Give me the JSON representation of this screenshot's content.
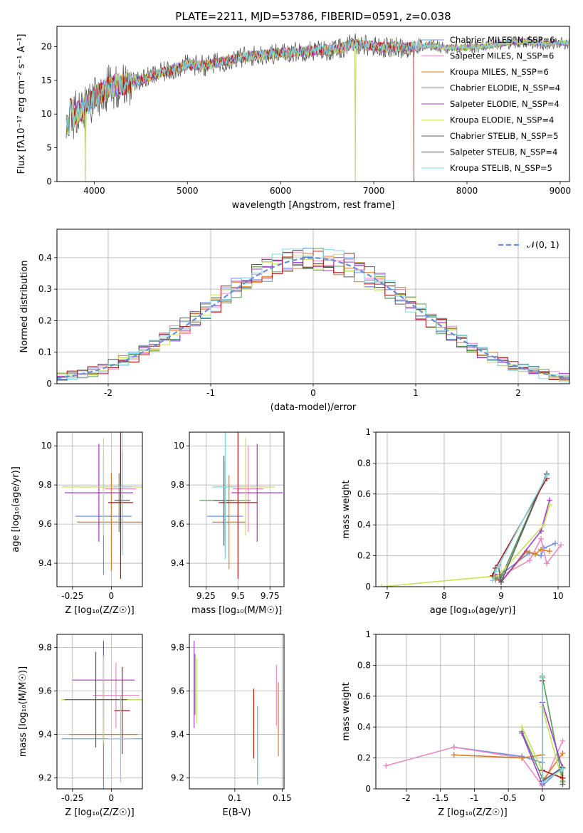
{
  "figure_title": "PLATE=2211, MJD=53786, FIBERID=0591, z=0.038",
  "colors": {
    "Chabrier MILES": "#6f8fe0",
    "Salpeter MILES": "#e98bc0",
    "Kroupa MILES": "#e07a20",
    "Chabrier ELODIE": "#5a9a5a",
    "Salpeter ELODIE": "#a23cc8",
    "Kroupa ELODIE": "#c8e05a",
    "Chabrier STELIB": "#5a5a5a",
    "Salpeter STELIB": "#b01818",
    "Kroupa STELIB": "#7fd8e0",
    "gaussian": "#6a8fd8"
  },
  "chart_data": [
    {
      "type": "line",
      "xlabel": "wavelength [Angstrom, rest frame]",
      "ylabel": "Flux [fλ10⁻¹⁷ erg cm⁻² s⁻¹ A⁻¹]",
      "xlim": [
        3600,
        9100
      ],
      "ylim": [
        0,
        23
      ],
      "xticks": [
        4000,
        5000,
        6000,
        7000,
        8000,
        9000
      ],
      "yticks": [
        0,
        5,
        10,
        15,
        20
      ],
      "grid": false,
      "legend_position": "right",
      "series": [
        {
          "name": "Chabrier MILES, N_SSP=6",
          "nssp": "6"
        },
        {
          "name": "Salpeter MILES, N_SSP=6",
          "nssp": "6"
        },
        {
          "name": "Kroupa MILES, N_SSP=6",
          "nssp": "6"
        },
        {
          "name": "Chabrier ELODIE, N_SSP=4",
          "nssp": "4"
        },
        {
          "name": "Salpeter ELODIE, N_SSP=4",
          "nssp": "4"
        },
        {
          "name": "Kroupa ELODIE, N_SSP=4",
          "nssp": "4"
        },
        {
          "name": "Chabrier STELIB, N_SSP=5",
          "nssp": "5"
        },
        {
          "name": "Salpeter STELIB, N_SSP=4",
          "nssp": "4"
        },
        {
          "name": "Kroupa STELIB, N_SSP=5",
          "nssp": "5"
        }
      ],
      "labels": [
        "Chabrier MILES",
        "Salpeter MILES",
        "Kroupa MILES",
        "Chabrier ELODIE",
        "Salpeter ELODIE",
        "Kroupa ELODIE",
        "Chabrier STELIB",
        "Salpeter STELIB",
        "Kroupa STELIB"
      ],
      "envelope": [
        [
          3700,
          8
        ],
        [
          3800,
          10
        ],
        [
          3900,
          11
        ],
        [
          4000,
          12.5
        ],
        [
          4100,
          13.5
        ],
        [
          4200,
          14.2
        ],
        [
          4300,
          14.5
        ],
        [
          4500,
          15
        ],
        [
          4700,
          16
        ],
        [
          5000,
          17.3
        ],
        [
          5200,
          17.2
        ],
        [
          5500,
          18.2
        ],
        [
          5800,
          18.8
        ],
        [
          6000,
          19
        ],
        [
          6300,
          19.4
        ],
        [
          6600,
          19.5
        ],
        [
          6800,
          20.5
        ],
        [
          7000,
          20
        ],
        [
          7200,
          19.8
        ],
        [
          7400,
          19.9
        ],
        [
          7600,
          20.2
        ],
        [
          7800,
          19.8
        ],
        [
          8000,
          19.9
        ],
        [
          8200,
          20
        ],
        [
          8400,
          20.5
        ],
        [
          8600,
          20.8
        ],
        [
          8800,
          20.4
        ],
        [
          9000,
          20.5
        ]
      ]
    },
    {
      "type": "line",
      "xlabel": "(data-model)/error",
      "ylabel": "Normed distribution",
      "xlim": [
        -2.5,
        2.5
      ],
      "ylim": [
        0,
        0.49
      ],
      "xticks": [
        -2,
        -1,
        0,
        1,
        2
      ],
      "yticks": [
        0.0,
        0.1,
        0.2,
        0.3,
        0.4
      ],
      "grid": true,
      "legend_position": "top-right",
      "legend_label": "𝒩(0, 1)",
      "bins": [
        -2.5,
        -2.4,
        -2.3,
        -2.2,
        -2.1,
        -2.0,
        -1.9,
        -1.8,
        -1.7,
        -1.6,
        -1.5,
        -1.4,
        -1.3,
        -1.2,
        -1.1,
        -1.0,
        -0.9,
        -0.8,
        -0.7,
        -0.6,
        -0.5,
        -0.4,
        -0.3,
        -0.2,
        -0.1,
        0.0,
        0.1,
        0.2,
        0.3,
        0.4,
        0.5,
        0.6,
        0.7,
        0.8,
        0.9,
        1.0,
        1.1,
        1.2,
        1.3,
        1.4,
        1.5,
        1.6,
        1.7,
        1.8,
        1.9,
        2.0,
        2.1,
        2.2,
        2.3,
        2.4,
        2.5
      ]
    },
    {
      "type": "scatter",
      "xlabel": "Z [log₁₀(Z/Z☉)]",
      "ylabel": "age  [log₁₀(age/yr)]",
      "xlim": [
        -0.35,
        0.2
      ],
      "ylim": [
        9.28,
        10.07
      ],
      "xticks": [
        -0.25,
        0.0
      ],
      "yticks": [
        9.4,
        9.6,
        9.8,
        10.0
      ],
      "grid": true,
      "points": [
        {
          "x": -0.05,
          "y": 9.64,
          "xerr": 0.18,
          "yerr": 0.3
        },
        {
          "x": 0.06,
          "y": 9.78,
          "xerr": 0.1,
          "yerr": 0.2
        },
        {
          "x": 0.0,
          "y": 9.61,
          "xerr": 0.22,
          "yerr": 0.25
        },
        {
          "x": 0.05,
          "y": 9.71,
          "xerr": 0.05,
          "yerr": 0.15
        },
        {
          "x": -0.08,
          "y": 9.76,
          "xerr": 0.22,
          "yerr": 0.25
        },
        {
          "x": -0.05,
          "y": 9.79,
          "xerr": 0.27,
          "yerr": 0.25
        },
        {
          "x": 0.07,
          "y": 9.72,
          "xerr": 0.05,
          "yerr": 0.25
        },
        {
          "x": 0.06,
          "y": 9.71,
          "xerr": 0.08,
          "yerr": 0.39
        },
        {
          "x": 0.07,
          "y": 9.79,
          "xerr": 0.06,
          "yerr": 0.35
        }
      ]
    },
    {
      "type": "scatter",
      "xlabel": "mass [log₁₀(M/M☉)]",
      "ylabel": "",
      "xlim": [
        9.12,
        9.86
      ],
      "ylim": [
        9.28,
        10.07
      ],
      "xticks": [
        9.25,
        9.5,
        9.75
      ],
      "yticks": [
        9.4,
        9.6,
        9.8,
        10.0
      ],
      "grid": true,
      "points": [
        {
          "x": 9.4,
          "y": 9.64,
          "xerr": 0.14,
          "yerr": 0.18
        },
        {
          "x": 9.58,
          "y": 9.78,
          "xerr": 0.12,
          "yerr": 0.22
        },
        {
          "x": 9.43,
          "y": 9.61,
          "xerr": 0.13,
          "yerr": 0.24
        },
        {
          "x": 9.4,
          "y": 9.72,
          "xerr": 0.2,
          "yerr": 0.2
        },
        {
          "x": 9.65,
          "y": 9.76,
          "xerr": 0.2,
          "yerr": 0.25
        },
        {
          "x": 9.56,
          "y": 9.79,
          "xerr": 0.23,
          "yerr": 0.25
        },
        {
          "x": 9.39,
          "y": 9.72,
          "xerr": 0.08,
          "yerr": 0.23
        },
        {
          "x": 9.5,
          "y": 9.71,
          "xerr": 0.15,
          "yerr": 0.39
        },
        {
          "x": 9.4,
          "y": 9.79,
          "xerr": 0.1,
          "yerr": 0.37
        }
      ]
    },
    {
      "type": "line",
      "xlabel": "age  [log₁₀(age/yr)]",
      "ylabel": "mass weight",
      "xlim": [
        6.8,
        10.2
      ],
      "ylim": [
        0,
        1.0
      ],
      "xticks": [
        7,
        8,
        9,
        10
      ],
      "yticks": [
        0.0,
        0.2,
        0.4,
        0.6,
        0.8,
        1.0
      ],
      "grid": true,
      "series": [
        {
          "x": [
            8.9,
            9.0,
            9.5,
            9.7,
            9.75,
            9.95
          ],
          "y": [
            0.05,
            0.08,
            0.22,
            0.2,
            0.25,
            0.28
          ]
        },
        {
          "x": [
            8.9,
            9.0,
            9.5,
            9.7,
            9.8,
            10.05
          ],
          "y": [
            0.04,
            0.07,
            0.17,
            0.31,
            0.15,
            0.27
          ]
        },
        {
          "x": [
            8.85,
            9.0,
            9.45,
            9.6,
            9.7,
            9.85
          ],
          "y": [
            0.07,
            0.03,
            0.23,
            0.21,
            0.24,
            0.23
          ]
        },
        {
          "x": [
            8.9,
            9.0,
            9.8
          ],
          "y": [
            0.05,
            0.06,
            0.73
          ]
        },
        {
          "x": [
            8.9,
            9.0,
            9.7,
            9.85
          ],
          "y": [
            0.08,
            0.03,
            0.36,
            0.56
          ]
        },
        {
          "x": [
            6.9,
            8.95,
            9.75,
            9.85
          ],
          "y": [
            0.0,
            0.07,
            0.4,
            0.53
          ]
        },
        {
          "x": [
            8.95,
            9.0,
            9.8
          ],
          "y": [
            0.14,
            0.03,
            0.73
          ]
        },
        {
          "x": [
            8.85,
            8.9,
            9.8
          ],
          "y": [
            0.07,
            0.12,
            0.7
          ]
        },
        {
          "x": [
            8.85,
            8.9,
            8.95,
            9.8
          ],
          "y": [
            0.04,
            0.1,
            0.13,
            0.72
          ]
        }
      ]
    },
    {
      "type": "scatter",
      "xlabel": "Z [log₁₀(Z/Z☉)]",
      "ylabel": "mass [log₁₀(M/M☉)]",
      "xlim": [
        -0.35,
        0.2
      ],
      "ylim": [
        9.15,
        9.86
      ],
      "xticks": [
        -0.25,
        0.0
      ],
      "yticks": [
        9.2,
        9.4,
        9.6,
        9.8
      ],
      "grid": true,
      "points": [
        {
          "x": -0.05,
          "y": 9.38,
          "xerr": 0.27,
          "yerr": 0.25
        },
        {
          "x": 0.03,
          "y": 9.58,
          "xerr": 0.15,
          "yerr": 0.15
        },
        {
          "x": -0.05,
          "y": 9.4,
          "xerr": 0.22,
          "yerr": 0.22
        },
        {
          "x": -0.05,
          "y": 9.56,
          "xerr": 0.27,
          "yerr": 0.2
        },
        {
          "x": -0.05,
          "y": 9.65,
          "xerr": 0.2,
          "yerr": 0.18
        },
        {
          "x": -0.05,
          "y": 9.56,
          "xerr": 0.27,
          "yerr": 0.2
        },
        {
          "x": -0.1,
          "y": 9.56,
          "xerr": 0.2,
          "yerr": 0.22
        },
        {
          "x": 0.07,
          "y": 9.51,
          "xerr": 0.05,
          "yerr": 0.2
        },
        {
          "x": 0.06,
          "y": 9.38,
          "xerr": 0.08,
          "yerr": 0.2
        }
      ]
    },
    {
      "type": "scatter",
      "xlabel": "E(B-V)",
      "ylabel": "",
      "xlim": [
        0.052,
        0.152
      ],
      "ylim": [
        9.15,
        9.86
      ],
      "xticks": [
        0.1,
        0.15
      ],
      "yticks": [
        9.2,
        9.4,
        9.6,
        9.8
      ],
      "grid": true,
      "points": [
        {
          "x": 0.124,
          "y": 9.35,
          "yerr": 0.18
        },
        {
          "x": 0.144,
          "y": 9.58,
          "yerr": 0.14
        },
        {
          "x": 0.146,
          "y": 9.47,
          "yerr": 0.17
        },
        {
          "x": 0.058,
          "y": 9.63,
          "yerr": 0.14
        },
        {
          "x": 0.057,
          "y": 9.63,
          "yerr": 0.2
        },
        {
          "x": 0.06,
          "y": 9.6,
          "yerr": 0.15
        },
        {
          "x": 0.124,
          "y": 9.35,
          "yerr": 0.18
        },
        {
          "x": 0.12,
          "y": 9.45,
          "yerr": 0.16
        },
        {
          "x": 0.124,
          "y": 9.35,
          "yerr": 0.18
        }
      ]
    },
    {
      "type": "line",
      "xlabel": "Z [log₁₀(Z/Z☉)]",
      "ylabel": "mass weight",
      "xlim": [
        -2.45,
        0.4
      ],
      "ylim": [
        0,
        1.0
      ],
      "xticks": [
        -2.0,
        -1.5,
        -1.0,
        -0.5,
        0.0
      ],
      "yticks": [
        0.0,
        0.2,
        0.4,
        0.6,
        0.8,
        1.0
      ],
      "grid": true,
      "series": [
        {
          "x": [
            -1.3,
            -0.3,
            0.0,
            0.0,
            0.3
          ],
          "y": [
            0.27,
            0.21,
            0.17,
            0.02,
            0.14
          ]
        },
        {
          "x": [
            -2.3,
            -1.3,
            -0.3,
            0.0,
            0.3
          ],
          "y": [
            0.15,
            0.27,
            0.2,
            0.02,
            0.31
          ]
        },
        {
          "x": [
            -1.3,
            -0.3,
            0.0,
            0.0,
            0.3
          ],
          "y": [
            0.22,
            0.2,
            0.22,
            0.05,
            0.23
          ]
        },
        {
          "x": [
            -0.3,
            0.0,
            0.0,
            0.3
          ],
          "y": [
            0.37,
            0.07,
            0.73,
            0.05
          ]
        },
        {
          "x": [
            -0.3,
            0.0,
            0.0,
            0.3
          ],
          "y": [
            0.36,
            0.03,
            0.56,
            0.13
          ]
        },
        {
          "x": [
            -0.3,
            0.0,
            0.0,
            0.3
          ],
          "y": [
            0.4,
            0.12,
            0.53,
            0.04
          ]
        },
        {
          "x": [
            0.0,
            0.0,
            0.3,
            0.3
          ],
          "y": [
            0.72,
            0.05,
            0.14,
            0.03
          ]
        },
        {
          "x": [
            0.0,
            0.0,
            0.3
          ],
          "y": [
            0.7,
            0.12,
            0.07
          ]
        },
        {
          "x": [
            0.0,
            0.0,
            0.3
          ],
          "y": [
            0.72,
            0.04,
            0.13
          ]
        }
      ]
    }
  ]
}
